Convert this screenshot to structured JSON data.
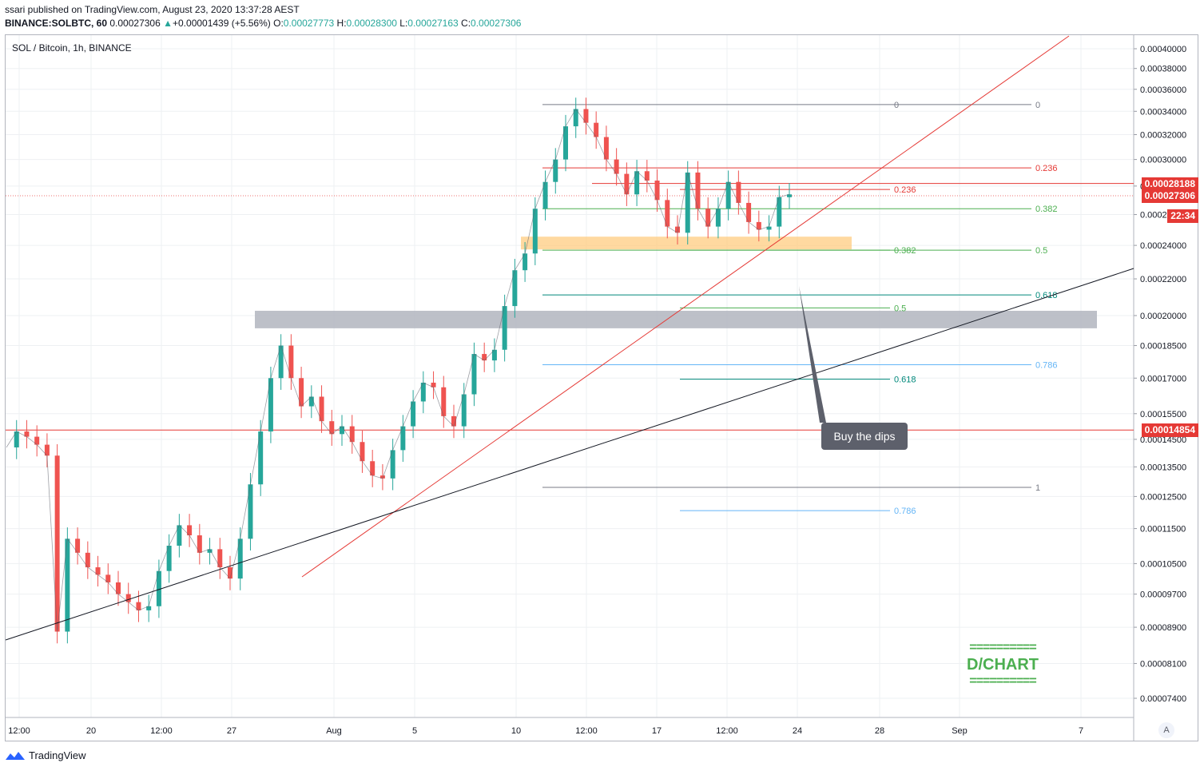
{
  "header": {
    "line1": "ssari published on TradingView.com, August 23, 2020 13:37:28 AEST",
    "symbol": "BINANCE:SOLBTC, 60",
    "last": "0.00027306",
    "change_icon": "triangle-up-icon",
    "change": "+0.00001439 (+5.56%)",
    "o_label": "O:",
    "o": "0.00027773",
    "h_label": "H:",
    "h": "0.00028300",
    "l_label": "L:",
    "l": "0.00027163",
    "c_label": "C:",
    "c": "0.00027306"
  },
  "chart_title": "SOL / Bitcoin, 1h, BINANCE",
  "footer_brand": "TradingView",
  "callout_text": "Buy the dips",
  "watermark": {
    "rule": "==========",
    "text": "D/CHART"
  },
  "auto_button": "A",
  "price_tags": [
    {
      "text": "0.00028188",
      "value": 0.00028188,
      "color": "#e53935"
    },
    {
      "text": "0.00027306",
      "value": 0.00027306,
      "color": "#e53935"
    },
    {
      "text": "22:34",
      "value": 0.000259,
      "color": "#e53935"
    },
    {
      "text": "0.00014854",
      "value": 0.00014854,
      "color": "#e53935"
    }
  ],
  "fib_a": [
    {
      "label": "0",
      "value": 0.000346,
      "color": "#787b86"
    },
    {
      "label": "0.236",
      "value": 0.0002935,
      "color": "#e53935"
    },
    {
      "label": "0.382",
      "value": 0.000264,
      "color": "#4caf50"
    },
    {
      "label": "0.5",
      "value": 0.000237,
      "color": "#4caf50"
    },
    {
      "label": "0.618",
      "value": 0.000211,
      "color": "#00897b"
    },
    {
      "label": "0.786",
      "value": 0.000176,
      "color": "#64b5f6"
    },
    {
      "label": "1",
      "value": 0.000128,
      "color": "#787b86"
    }
  ],
  "fib_b": [
    {
      "label": "0.236",
      "value": 0.0002775,
      "color": "#e53935"
    },
    {
      "label": "0.382",
      "value": 0.000237,
      "color": "#4caf50"
    },
    {
      "label": "0.5",
      "value": 0.000204,
      "color": "#4caf50"
    },
    {
      "label": "0.618",
      "value": 0.0001695,
      "color": "#00897b"
    },
    {
      "label": "0.786",
      "value": 0.0001205,
      "color": "#64b5f6"
    }
  ],
  "chart_data": {
    "type": "line",
    "title": "SOL / Bitcoin, 1h, BINANCE",
    "log_scale": true,
    "ylim": [
      7e-05,
      0.00041
    ],
    "yticks": [
      "0.00040000",
      "0.00038000",
      "0.00036000",
      "0.00034000",
      "0.00032000",
      "0.00030000",
      "0.00028000",
      "0.00026000",
      "0.00024000",
      "0.00022000",
      "0.00020000",
      "0.00018500",
      "0.00017000",
      "0.00015500",
      "0.00014500",
      "0.00013500",
      "0.00012500",
      "0.00011500",
      "0.00010500",
      "0.00009700",
      "0.00008900",
      "0.00008100",
      "0.00007400"
    ],
    "xticks": [
      "12:00",
      "20",
      "12:00",
      "27",
      "Aug",
      "5",
      "10",
      "12:00",
      "17",
      "12:00",
      "24",
      "28",
      "Sep",
      "7"
    ],
    "horizontal_levels": [
      0.00028188,
      0.00014854
    ],
    "zones": [
      {
        "from": 0.0001935,
        "to": 0.0002025,
        "color": "#b2b5be"
      },
      {
        "from": 0.0002375,
        "to": 0.0002455,
        "color": "#ffcc80"
      }
    ],
    "series": [
      {
        "values": [
          0.000142,
          0.000148,
          0.000146,
          0.000143,
          0.000139,
          8.8e-05,
          0.000112,
          0.000108,
          0.000104,
          0.000102,
          0.0001,
          9.7e-05,
          9.5e-05,
          9.3e-05,
          9.4e-05,
          0.000103,
          0.00011,
          0.000116,
          0.000113,
          0.000108,
          0.000109,
          0.000104,
          0.000101,
          0.000112,
          0.000129,
          0.000148,
          0.00017,
          0.000185,
          0.00017,
          0.000158,
          0.000162,
          0.000152,
          0.000147,
          0.00015,
          0.000144,
          0.000137,
          0.000132,
          0.000131,
          0.000141,
          0.00015,
          0.00016,
          0.000168,
          0.000166,
          0.000154,
          0.00015,
          0.000163,
          0.000181,
          0.000178,
          0.000183,
          0.000205,
          0.000225,
          0.000235,
          0.000264,
          0.000283,
          0.0003,
          0.000327,
          0.000342,
          0.00033,
          0.000318,
          0.0003,
          0.000289,
          0.000274,
          0.000291,
          0.000284,
          0.00027,
          0.000252,
          0.000248,
          0.00029,
          0.000264,
          0.000252,
          0.000264,
          0.000283,
          0.000268,
          0.000255,
          0.00025,
          0.000252,
          0.000272,
          0.000274
        ]
      }
    ]
  }
}
